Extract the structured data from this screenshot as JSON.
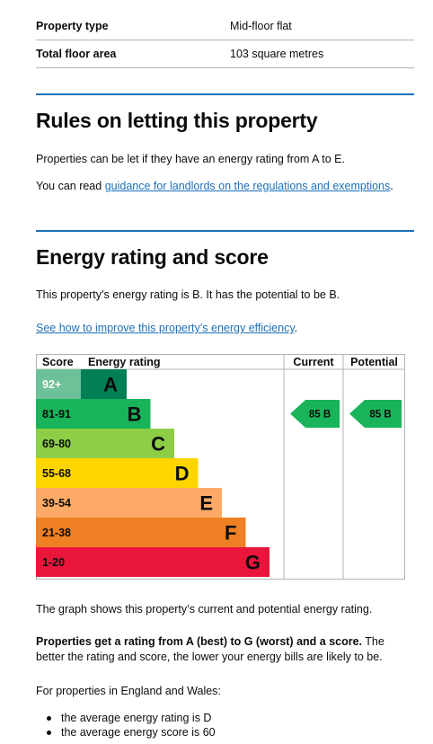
{
  "summary": [
    {
      "key": "Property type",
      "value": "Mid-floor flat"
    },
    {
      "key": "Total floor area",
      "value": "103 square metres"
    }
  ],
  "letting": {
    "heading": "Rules on letting this property",
    "p1": "Properties can be let if they have an energy rating from A to E.",
    "p2_prefix": "You can read ",
    "p2_link": "guidance for landlords on the regulations and exemptions",
    "p2_suffix": "."
  },
  "rating": {
    "heading": "Energy rating and score",
    "p1": "This property’s energy rating is B. It has the potential to be B.",
    "link": "See how to improve this property’s energy efficiency",
    "link_suffix": "."
  },
  "chart_data": {
    "type": "bar",
    "headers": {
      "score": "Score",
      "rating": "Energy rating",
      "current": "Current",
      "potential": "Potential"
    },
    "bands": [
      {
        "range": "92+",
        "letter": "A",
        "color": "#008054",
        "bg": "#6dc199",
        "fg": "#ffffff"
      },
      {
        "range": "81-91",
        "letter": "B",
        "color": "#19b459",
        "bg": "#19b459",
        "fg": "#0b0c0c"
      },
      {
        "range": "69-80",
        "letter": "C",
        "color": "#8dce46",
        "bg": "#8dce46",
        "fg": "#0b0c0c"
      },
      {
        "range": "55-68",
        "letter": "D",
        "color": "#ffd500",
        "bg": "#ffd500",
        "fg": "#0b0c0c"
      },
      {
        "range": "39-54",
        "letter": "E",
        "color": "#fcaa65",
        "bg": "#fcaa65",
        "fg": "#0b0c0c"
      },
      {
        "range": "21-38",
        "letter": "F",
        "color": "#ef8023",
        "bg": "#ef8023",
        "fg": "#0b0c0c"
      },
      {
        "range": "1-20",
        "letter": "G",
        "color": "#e9153b",
        "bg": "#e9153b",
        "fg": "#0b0c0c"
      }
    ],
    "current": {
      "score": 85,
      "band": "B",
      "label": "85  B",
      "color": "#19b459"
    },
    "potential": {
      "score": 85,
      "band": "B",
      "label": "85  B",
      "color": "#19b459"
    }
  },
  "after_chart": {
    "p1": "The graph shows this property’s current and potential energy rating.",
    "p2_bold": "Properties get a rating from A (best) to G (worst) and a score.",
    "p2_rest": " The better the rating and score, the lower your energy bills are likely to be.",
    "p3": "For properties in England and Wales:",
    "bullets": [
      "the average energy rating is D",
      "the average energy score is 60"
    ]
  }
}
